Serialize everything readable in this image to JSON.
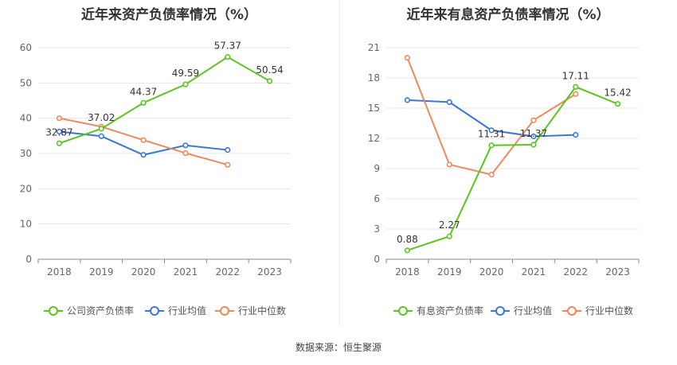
{
  "source_label": "数据来源：恒生聚源",
  "colors": {
    "company": "#5ac51e",
    "avg": "#3a77d8",
    "median": "#f0885a",
    "grid": "#e6e6e6",
    "axis": "#888888",
    "tick": "#666666"
  },
  "chart_data": [
    {
      "type": "line",
      "title": "近年来资产负债率情况（%）",
      "categories": [
        "2018",
        "2019",
        "2020",
        "2021",
        "2022",
        "2023"
      ],
      "ylim": [
        0,
        60
      ],
      "yticks": [
        0,
        10,
        20,
        30,
        40,
        50,
        60
      ],
      "grid": true,
      "legend_position": "bottom",
      "series": [
        {
          "name": "公司资产负债率",
          "color_key": "company",
          "values": [
            32.87,
            37.02,
            44.37,
            49.59,
            57.37,
            50.54
          ],
          "labels": [
            "32.87",
            "37.02",
            "44.37",
            "49.59",
            "57.37",
            "50.54"
          ]
        },
        {
          "name": "行业均值",
          "color_key": "avg",
          "values": [
            36.2,
            34.9,
            29.6,
            32.3,
            31.0,
            null
          ]
        },
        {
          "name": "行业中位数",
          "color_key": "median",
          "values": [
            40.0,
            37.6,
            33.8,
            30.1,
            26.8,
            null
          ]
        }
      ]
    },
    {
      "type": "line",
      "title": "近年来有息资产负债率情况（%）",
      "categories": [
        "2018",
        "2019",
        "2020",
        "2021",
        "2022",
        "2023"
      ],
      "ylim": [
        0,
        21
      ],
      "yticks": [
        0,
        3,
        6,
        9,
        12,
        15,
        18,
        21
      ],
      "grid": true,
      "legend_position": "bottom",
      "series": [
        {
          "name": "有息资产负债率",
          "color_key": "company",
          "values": [
            0.88,
            2.27,
            11.31,
            11.37,
            17.11,
            15.42
          ],
          "labels": [
            "0.88",
            "2.27",
            "11.31",
            "11.37",
            "17.11",
            "15.42"
          ]
        },
        {
          "name": "行业均值",
          "color_key": "avg",
          "values": [
            15.8,
            15.6,
            12.8,
            12.2,
            12.35,
            null
          ]
        },
        {
          "name": "行业中位数",
          "color_key": "median",
          "values": [
            20.0,
            9.4,
            8.4,
            13.8,
            16.4,
            null
          ]
        }
      ]
    }
  ]
}
